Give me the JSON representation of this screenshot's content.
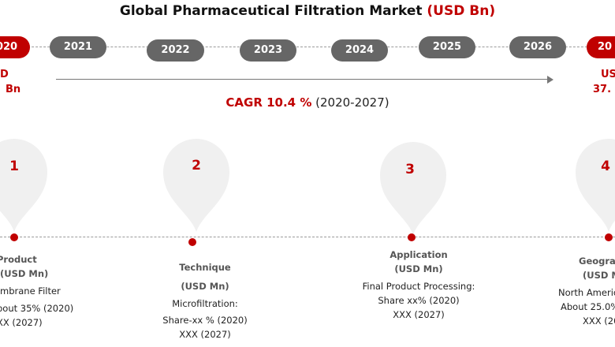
{
  "title": {
    "main": "Global Pharmaceutical Filtration Market",
    "unit": "(USD Bn)"
  },
  "colors": {
    "accent": "#c00000",
    "pill": "#666666",
    "pin": "#f0f0f0"
  },
  "timeline": {
    "start": {
      "year": "2020",
      "value_line1": "D",
      "value_line2": "Bn"
    },
    "years": [
      "2021",
      "2022",
      "2023",
      "2024",
      "2025",
      "2026"
    ],
    "end": {
      "year": "20",
      "value_line1": "US",
      "value_line2": "37."
    }
  },
  "cagr": {
    "label": "CAGR 10.4 %",
    "period": "(2020-2027)"
  },
  "chart_data": {
    "type": "table",
    "title": "Global Pharmaceutical Filtration Market (USD Bn)",
    "timeline": [
      "2020",
      "2021",
      "2022",
      "2023",
      "2024",
      "2025",
      "2026",
      "2027"
    ],
    "cagr_percent": 10.4,
    "cagr_period": "2020-2027",
    "segments": [
      {
        "number": "1",
        "name": "Product",
        "unit": "(USD Mn)",
        "lines": [
          "mbrane Filter",
          "bout 35% (2020)",
          "XX (2027)"
        ]
      },
      {
        "number": "2",
        "name": "Technique",
        "unit": "(USD Mn)",
        "lines": [
          "Microfiltration:",
          "Share-xx % (2020)",
          "XXX (2027)"
        ]
      },
      {
        "number": "3",
        "name": "Application",
        "unit": "(USD Mn)",
        "lines": [
          "Final Product Processing:",
          "Share xx% (2020)",
          "XXX (2027)"
        ]
      },
      {
        "number": "4",
        "name": "Geogra",
        "unit": "(USD M",
        "lines": [
          "North Americ",
          "About 25.0%",
          "XXX (20"
        ]
      }
    ]
  }
}
